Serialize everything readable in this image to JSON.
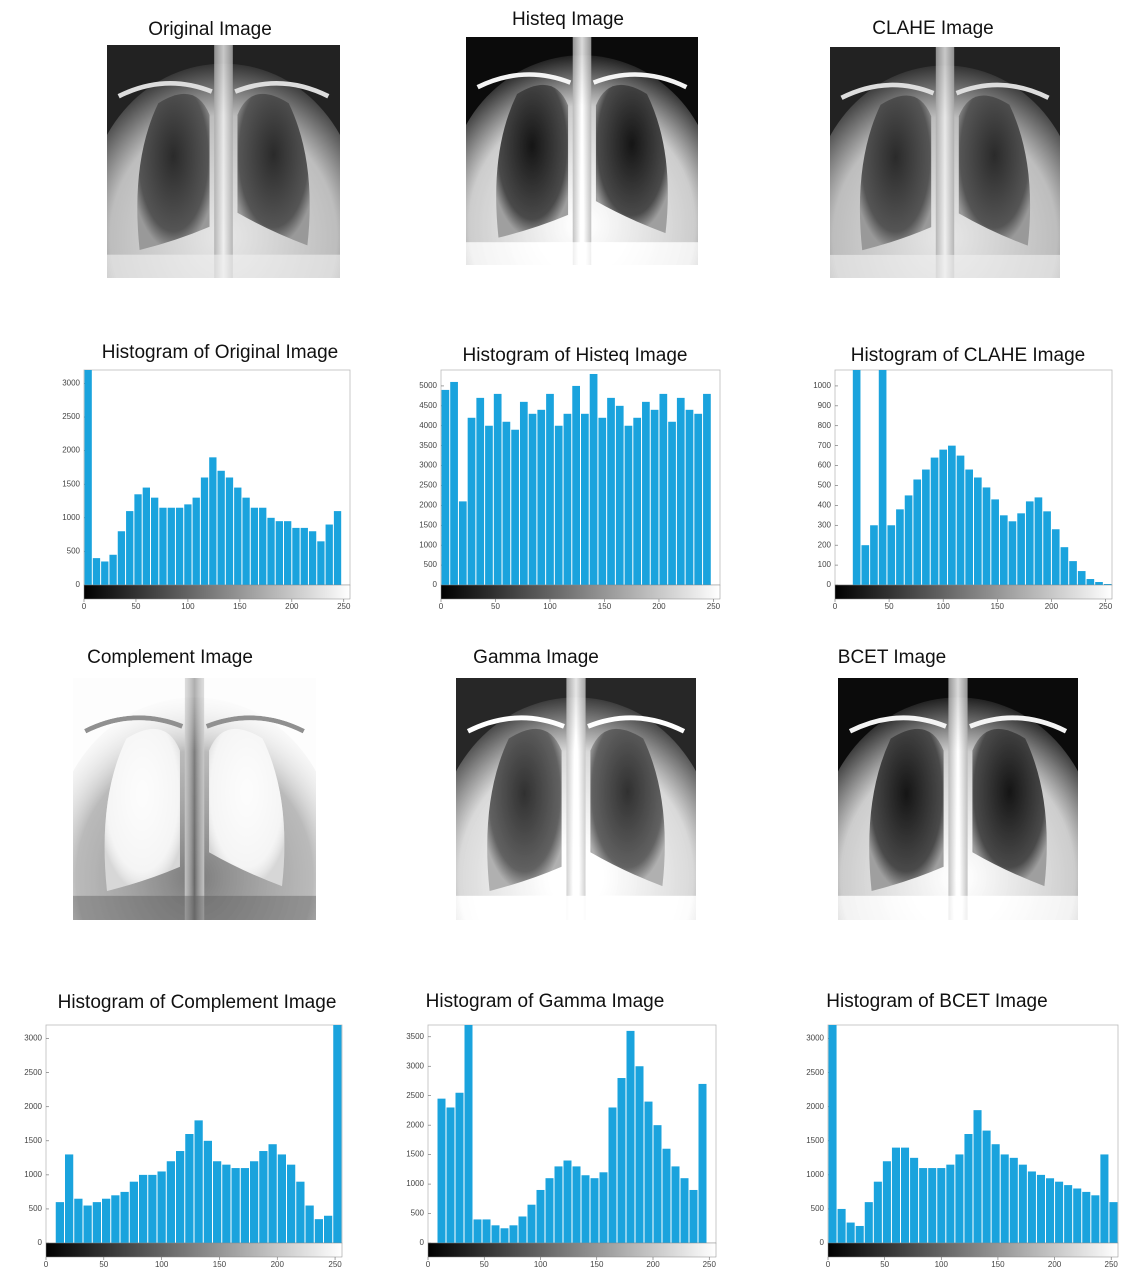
{
  "images": [
    {
      "title": "Original Image"
    },
    {
      "title": "Histeq Image"
    },
    {
      "title": "CLAHE Image"
    },
    {
      "title": "Complement Image"
    },
    {
      "title": "Gamma Image"
    },
    {
      "title": "BCET Image"
    }
  ],
  "chart_data": [
    {
      "type": "histogram",
      "title": "Histogram of Original Image",
      "color": "#1aa3dd",
      "bins": [
        0,
        8,
        16,
        24,
        32,
        40,
        48,
        56,
        64,
        72,
        80,
        88,
        96,
        104,
        112,
        120,
        128,
        136,
        144,
        152,
        160,
        168,
        176,
        184,
        192,
        200,
        208,
        216,
        224,
        232,
        240,
        248,
        256
      ],
      "values": [
        3200,
        400,
        350,
        450,
        800,
        1100,
        1350,
        1450,
        1300,
        1150,
        1150,
        1150,
        1200,
        1300,
        1600,
        1900,
        1700,
        1600,
        1450,
        1300,
        1150,
        1150,
        1000,
        950,
        950,
        850,
        850,
        800,
        650,
        900,
        1100,
        0
      ],
      "xlim": [
        0,
        256
      ],
      "xticks": [
        0,
        50,
        100,
        150,
        200,
        250
      ],
      "ylim": [
        0,
        3200
      ],
      "yticks": [
        0,
        500,
        1000,
        1500,
        2000,
        2500,
        3000
      ]
    },
    {
      "type": "histogram",
      "title": "Histogram of Histeq Image",
      "color": "#1aa3dd",
      "bins": [
        0,
        8,
        16,
        24,
        32,
        40,
        48,
        56,
        64,
        72,
        80,
        88,
        96,
        104,
        112,
        120,
        128,
        136,
        144,
        152,
        160,
        168,
        176,
        184,
        192,
        200,
        208,
        216,
        224,
        232,
        240,
        248,
        256
      ],
      "values": [
        4900,
        5100,
        2100,
        4200,
        4700,
        4000,
        4800,
        4100,
        3900,
        4600,
        4300,
        4400,
        4800,
        4000,
        4300,
        5000,
        4300,
        5300,
        4200,
        4700,
        4500,
        4000,
        4200,
        4600,
        4400,
        4800,
        4100,
        4700,
        4400,
        4300,
        4800,
        0
      ],
      "xlim": [
        0,
        256
      ],
      "xticks": [
        0,
        50,
        100,
        150,
        200,
        250
      ],
      "ylim": [
        0,
        5400
      ],
      "yticks": [
        0,
        500,
        1000,
        1500,
        2000,
        2500,
        3000,
        3500,
        4000,
        4500,
        5000
      ]
    },
    {
      "type": "histogram",
      "title": "Histogram of CLAHE Image",
      "color": "#1aa3dd",
      "bins": [
        0,
        8,
        16,
        24,
        32,
        40,
        48,
        56,
        64,
        72,
        80,
        88,
        96,
        104,
        112,
        120,
        128,
        136,
        144,
        152,
        160,
        168,
        176,
        184,
        192,
        200,
        208,
        216,
        224,
        232,
        240,
        248,
        256
      ],
      "values": [
        0,
        0,
        1080,
        200,
        300,
        1080,
        300,
        380,
        450,
        530,
        580,
        640,
        680,
        700,
        650,
        580,
        540,
        490,
        430,
        350,
        320,
        360,
        420,
        440,
        370,
        280,
        190,
        120,
        70,
        30,
        15,
        5
      ],
      "xlim": [
        0,
        256
      ],
      "xticks": [
        0,
        50,
        100,
        150,
        200,
        250
      ],
      "ylim": [
        0,
        1080
      ],
      "yticks": [
        0,
        100,
        200,
        300,
        400,
        500,
        600,
        700,
        800,
        900,
        1000
      ]
    },
    {
      "type": "histogram",
      "title": "Histogram of Complement Image",
      "color": "#1aa3dd",
      "bins": [
        0,
        8,
        16,
        24,
        32,
        40,
        48,
        56,
        64,
        72,
        80,
        88,
        96,
        104,
        112,
        120,
        128,
        136,
        144,
        152,
        160,
        168,
        176,
        184,
        192,
        200,
        208,
        216,
        224,
        232,
        240,
        248,
        256
      ],
      "values": [
        0,
        600,
        1300,
        650,
        550,
        600,
        650,
        700,
        750,
        900,
        1000,
        1000,
        1050,
        1200,
        1350,
        1600,
        1800,
        1500,
        1200,
        1150,
        1100,
        1100,
        1200,
        1350,
        1450,
        1300,
        1150,
        900,
        550,
        350,
        400,
        3200
      ],
      "xlim": [
        0,
        256
      ],
      "xticks": [
        0,
        50,
        100,
        150,
        200,
        250
      ],
      "ylim": [
        0,
        3200
      ],
      "yticks": [
        0,
        500,
        1000,
        1500,
        2000,
        2500,
        3000
      ]
    },
    {
      "type": "histogram",
      "title": "Histogram of Gamma Image",
      "color": "#1aa3dd",
      "bins": [
        0,
        8,
        16,
        24,
        32,
        40,
        48,
        56,
        64,
        72,
        80,
        88,
        96,
        104,
        112,
        120,
        128,
        136,
        144,
        152,
        160,
        168,
        176,
        184,
        192,
        200,
        208,
        216,
        224,
        232,
        240,
        248,
        256
      ],
      "values": [
        0,
        2450,
        2300,
        2550,
        3700,
        400,
        400,
        300,
        250,
        300,
        450,
        650,
        900,
        1100,
        1300,
        1400,
        1300,
        1150,
        1100,
        1200,
        2300,
        2800,
        3600,
        3000,
        2400,
        2000,
        1600,
        1300,
        1100,
        900,
        2700,
        0
      ],
      "xlim": [
        0,
        256
      ],
      "xticks": [
        0,
        50,
        100,
        150,
        200,
        250
      ],
      "ylim": [
        0,
        3700
      ],
      "yticks": [
        0,
        500,
        1000,
        1500,
        2000,
        2500,
        3000,
        3500
      ]
    },
    {
      "type": "histogram",
      "title": "Histogram of BCET Image",
      "color": "#1aa3dd",
      "bins": [
        0,
        8,
        16,
        24,
        32,
        40,
        48,
        56,
        64,
        72,
        80,
        88,
        96,
        104,
        112,
        120,
        128,
        136,
        144,
        152,
        160,
        168,
        176,
        184,
        192,
        200,
        208,
        216,
        224,
        232,
        240,
        248,
        256
      ],
      "values": [
        3200,
        500,
        300,
        250,
        600,
        900,
        1200,
        1400,
        1400,
        1250,
        1100,
        1100,
        1100,
        1150,
        1300,
        1600,
        1950,
        1650,
        1450,
        1300,
        1250,
        1150,
        1050,
        1000,
        950,
        900,
        850,
        800,
        750,
        700,
        1300,
        600
      ],
      "xlim": [
        0,
        256
      ],
      "xticks": [
        0,
        50,
        100,
        150,
        200,
        250
      ],
      "ylim": [
        0,
        3200
      ],
      "yticks": [
        0,
        500,
        1000,
        1500,
        2000,
        2500,
        3000
      ]
    }
  ]
}
